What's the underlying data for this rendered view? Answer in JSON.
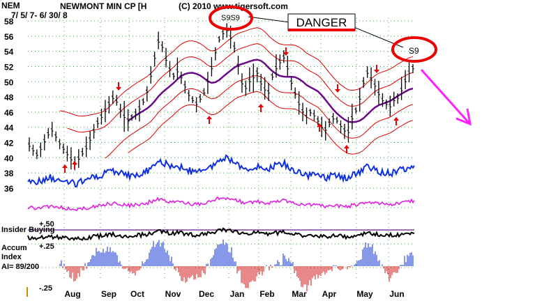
{
  "chart_data": {
    "type": "line",
    "ticker": "NEM",
    "title": "NEWMONT MIN CP [H",
    "date_range": "7/ 5/ 7- 6/ 30/ 8",
    "copyright": "(C) 2010 www.tigersoft.com",
    "y_ticks": [
      58,
      56,
      54,
      52,
      50,
      48,
      46,
      44,
      42,
      40,
      38,
      36
    ],
    "ylim": [
      35,
      59
    ],
    "x_ticks": [
      "Aug",
      "Sep",
      "Oct",
      "Nov",
      "Dec",
      "Jan",
      "Feb",
      "Mar",
      "Apr",
      "May",
      "Jun"
    ],
    "annotations": {
      "danger": "DANGER",
      "signal_top": "S9S9",
      "signal_right": "S9"
    },
    "indicator_labels": {
      "insider": "Insider Buying",
      "plus50": "+.50",
      "plus25": "+.25",
      "accum_line1": "Accum",
      "accum_line2": "Index",
      "ai": "AI= 89/200",
      "minus25": "-.25"
    },
    "price_series": {
      "name": "price",
      "values": [
        41.6,
        41.0,
        40.4,
        41.2,
        42.2,
        43.1,
        43.6,
        42.8,
        41.9,
        41.2,
        40.5,
        39.8,
        39.2,
        39.9,
        40.6,
        41.3,
        42.4,
        43.5,
        44.6,
        45.4,
        46.2,
        47.1,
        47.9,
        47.4,
        46.2,
        45.4,
        44.9,
        45.3,
        45.8,
        46.5,
        47.4,
        48.7,
        50.8,
        53.2,
        55.3,
        54.6,
        52.9,
        51.6,
        50.8,
        51.4,
        50.6,
        49.4,
        48.3,
        47.6,
        47.1,
        47.8,
        48.6,
        50.1,
        51.8,
        53.9,
        55.6,
        56.4,
        56.8,
        55.8,
        54.5,
        52.1,
        49.8,
        49.2,
        50.1,
        50.6,
        51.2,
        49.8,
        49.0,
        48.6,
        50.7,
        51.8,
        52.6,
        53.2,
        51.8,
        49.9,
        48.4,
        47.1,
        46.1,
        45.4,
        46.0,
        45.6,
        44.9,
        44.1,
        43.7,
        44.5,
        45.2,
        44.9,
        44.2,
        43.6,
        43.4,
        45.2,
        46.2,
        47.8,
        49.9,
        51.2,
        50.3,
        49.5,
        48.4,
        47.6,
        47.1,
        46.8,
        47.6,
        47.9,
        48.9,
        50.1,
        51.2,
        51.8
      ]
    },
    "colors": {
      "price": "#000000",
      "band": "#dd0000",
      "ma": "#6a0a8a",
      "blue": "#1030e0",
      "magenta": "#e020e0",
      "accent_red": "#ee0000",
      "arrow_magenta": "#ff22ff",
      "purple_line": "#8040a0",
      "acc_pos": "#1030d0",
      "acc_neg": "#d01010"
    },
    "grid": true
  }
}
